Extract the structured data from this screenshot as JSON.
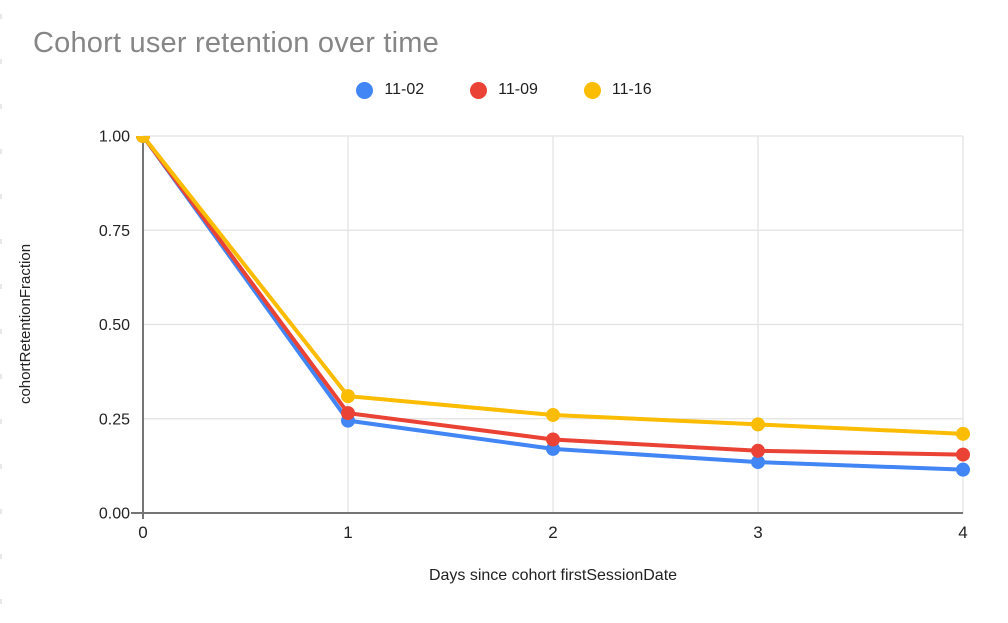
{
  "page": {
    "background": "#ffffff"
  },
  "chart_data": {
    "type": "line",
    "title": "Cohort user retention over time",
    "xlabel": "Days since cohort firstSessionDate",
    "ylabel": "cohortRetentionFraction",
    "x": [
      0,
      1,
      2,
      3,
      4
    ],
    "xlim": [
      0,
      4
    ],
    "ylim": [
      0,
      1
    ],
    "x_tick_labels": [
      "0",
      "1",
      "2",
      "3",
      "4"
    ],
    "y_tick_values": [
      0,
      0.25,
      0.5,
      0.75,
      1
    ],
    "y_tick_labels": [
      "0.00",
      "0.25",
      "0.50",
      "0.75",
      "1.00"
    ],
    "grid": true,
    "legend_position": "top-center",
    "series": [
      {
        "name": "11-02",
        "color": "#4285F4",
        "values": [
          1.0,
          0.245,
          0.17,
          0.135,
          0.115
        ]
      },
      {
        "name": "11-09",
        "color": "#EA4335",
        "values": [
          1.0,
          0.265,
          0.195,
          0.165,
          0.155
        ]
      },
      {
        "name": "11-16",
        "color": "#FBBC04",
        "values": [
          1.0,
          0.31,
          0.26,
          0.235,
          0.21
        ]
      }
    ],
    "styles": {
      "title_color": "#868686",
      "tick_label_color": "#232323",
      "axis_title_color": "#222222",
      "gridline_color": "#e3e3e3",
      "axis_line_color": "#757575",
      "legend_text_color": "#1f1f1f"
    }
  }
}
